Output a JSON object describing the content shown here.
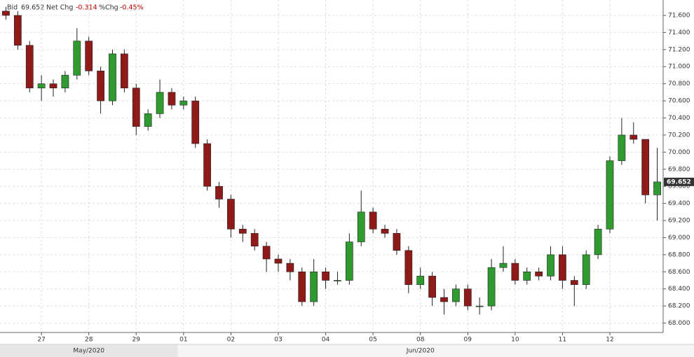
{
  "header": {
    "bid_label": "Bid",
    "net_chg_label": "Net Chg",
    "net_chg": "-0.314",
    "pct_chg_label": "%Chg",
    "pct_chg": "-0.45%"
  },
  "chart_data": {
    "type": "candlestick",
    "categories": [
      null,
      null,
      null,
      "27",
      null,
      null,
      null,
      "28",
      null,
      null,
      null,
      "29",
      null,
      null,
      null,
      "01",
      null,
      null,
      null,
      "02",
      null,
      null,
      null,
      "03",
      null,
      null,
      null,
      "04",
      null,
      null,
      null,
      "05",
      null,
      null,
      null,
      "08",
      null,
      null,
      null,
      "09",
      null,
      null,
      null,
      "10",
      null,
      null,
      null,
      "11",
      null,
      null,
      null,
      "12",
      null,
      null,
      null,
      null
    ],
    "months": [
      "May/2020",
      "Jun/2020"
    ],
    "open": [
      71.65,
      71.6,
      71.25,
      70.75,
      70.8,
      70.75,
      70.9,
      71.3,
      70.95,
      70.6,
      71.15,
      70.75,
      70.3,
      70.45,
      70.7,
      70.55,
      70.6,
      70.1,
      69.6,
      69.45,
      69.1,
      69.05,
      68.9,
      68.75,
      68.7,
      68.6,
      68.25,
      68.6,
      68.5,
      68.5,
      68.95,
      69.3,
      69.1,
      69.05,
      68.85,
      68.45,
      68.55,
      68.3,
      68.25,
      68.4,
      68.2,
      68.2,
      68.65,
      68.7,
      68.5,
      68.6,
      68.55,
      68.8,
      68.5,
      68.45,
      68.8,
      69.1,
      69.9,
      70.2,
      70.15,
      69.5
    ],
    "high": [
      71.7,
      71.65,
      71.3,
      70.9,
      70.85,
      70.95,
      71.45,
      71.35,
      71.0,
      71.2,
      71.2,
      70.8,
      70.5,
      70.85,
      70.75,
      70.65,
      70.65,
      70.15,
      69.65,
      69.5,
      69.15,
      69.1,
      68.95,
      68.8,
      68.75,
      68.65,
      68.75,
      68.65,
      68.6,
      69.05,
      69.55,
      69.35,
      69.15,
      69.1,
      68.9,
      68.65,
      68.6,
      68.4,
      68.45,
      68.45,
      68.3,
      68.75,
      68.9,
      68.75,
      68.65,
      68.65,
      68.9,
      68.9,
      68.55,
      68.85,
      69.15,
      69.95,
      70.4,
      70.35,
      70.15,
      70.05
    ],
    "low": [
      71.55,
      71.2,
      70.7,
      70.6,
      70.65,
      70.7,
      70.85,
      70.9,
      70.45,
      70.55,
      70.7,
      70.2,
      70.25,
      70.4,
      70.5,
      70.5,
      70.05,
      69.55,
      69.35,
      69.0,
      68.95,
      68.85,
      68.6,
      68.6,
      68.5,
      68.2,
      68.2,
      68.4,
      68.45,
      68.45,
      68.9,
      69.05,
      69.0,
      68.8,
      68.35,
      68.4,
      68.2,
      68.1,
      68.2,
      68.15,
      68.1,
      68.15,
      68.6,
      68.45,
      68.45,
      68.5,
      68.5,
      68.4,
      68.2,
      68.4,
      68.75,
      69.05,
      69.85,
      70.1,
      69.4,
      69.2
    ],
    "close": [
      71.6,
      71.25,
      70.75,
      70.8,
      70.75,
      70.9,
      71.3,
      70.95,
      70.6,
      71.15,
      70.75,
      70.3,
      70.45,
      70.7,
      70.55,
      70.6,
      70.1,
      69.6,
      69.45,
      69.1,
      69.05,
      68.9,
      68.75,
      68.7,
      68.6,
      68.25,
      68.6,
      68.5,
      68.5,
      68.95,
      69.3,
      69.1,
      69.05,
      68.85,
      68.45,
      68.55,
      68.3,
      68.25,
      68.4,
      68.2,
      68.2,
      68.65,
      68.7,
      68.5,
      68.6,
      68.55,
      68.8,
      68.5,
      68.45,
      68.8,
      69.1,
      69.9,
      70.2,
      70.15,
      69.5,
      69.652
    ],
    "up_color": "#2f9a2f",
    "down_color": "#8e1a1a",
    "last_price": 69.652,
    "ylim": [
      67.89,
      71.78
    ],
    "yticks": [
      {
        "value": 68,
        "label": "68.000"
      },
      {
        "value": 68.2,
        "label": "68.200"
      },
      {
        "value": 68.4,
        "label": "68.400"
      },
      {
        "value": 68.6,
        "label": "68.600"
      },
      {
        "value": 68.8,
        "label": "68.800"
      },
      {
        "value": 69,
        "label": "69.000"
      },
      {
        "value": 69.2,
        "label": "69.200"
      },
      {
        "value": 69.4,
        "label": "69.400"
      },
      {
        "value": 69.6,
        "label": "69.600"
      },
      {
        "value": 69.8,
        "label": "69.800"
      },
      {
        "value": 70,
        "label": "70.000"
      },
      {
        "value": 70.2,
        "label": "70.200"
      },
      {
        "value": 70.4,
        "label": "70.400"
      },
      {
        "value": 70.6,
        "label": "70.600"
      },
      {
        "value": 70.8,
        "label": "70.800"
      },
      {
        "value": 71,
        "label": "71.000"
      },
      {
        "value": 71.2,
        "label": "71.200"
      },
      {
        "value": 71.4,
        "label": "71.400"
      },
      {
        "value": 71.6,
        "label": "71.600"
      }
    ],
    "grid": true
  }
}
